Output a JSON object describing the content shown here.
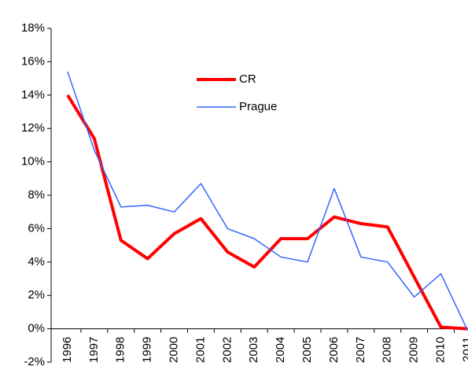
{
  "chart_data": {
    "type": "line",
    "categories": [
      "1996",
      "1997",
      "1998",
      "1999",
      "2000",
      "2001",
      "2002",
      "2003",
      "2004",
      "2005",
      "2006",
      "2007",
      "2008",
      "2009",
      "2010",
      "2011"
    ],
    "series": [
      {
        "name": "CR",
        "color": "#ff0000",
        "values": [
          14.0,
          11.4,
          5.3,
          4.2,
          5.7,
          6.6,
          4.6,
          3.7,
          5.4,
          5.4,
          6.7,
          6.3,
          6.1,
          3.1,
          0.1,
          0.0
        ]
      },
      {
        "name": "Prague",
        "color": "#3366ff",
        "values": [
          15.4,
          10.7,
          7.3,
          7.4,
          7.0,
          8.7,
          6.0,
          5.4,
          4.3,
          4.0,
          8.4,
          4.3,
          4.0,
          1.9,
          3.3,
          -0.1
        ]
      }
    ],
    "ylim": [
      -2,
      18
    ],
    "yticks": [
      {
        "value": -2,
        "label": "-2%"
      },
      {
        "value": 0,
        "label": "0%"
      },
      {
        "value": 2,
        "label": "2%"
      },
      {
        "value": 4,
        "label": "4%"
      },
      {
        "value": 6,
        "label": "6%"
      },
      {
        "value": 8,
        "label": "8%"
      },
      {
        "value": 10,
        "label": "10%"
      },
      {
        "value": 12,
        "label": "12%"
      },
      {
        "value": 14,
        "label": "14%"
      },
      {
        "value": 16,
        "label": "16%"
      },
      {
        "value": 18,
        "label": "18%"
      }
    ],
    "grid": false
  }
}
